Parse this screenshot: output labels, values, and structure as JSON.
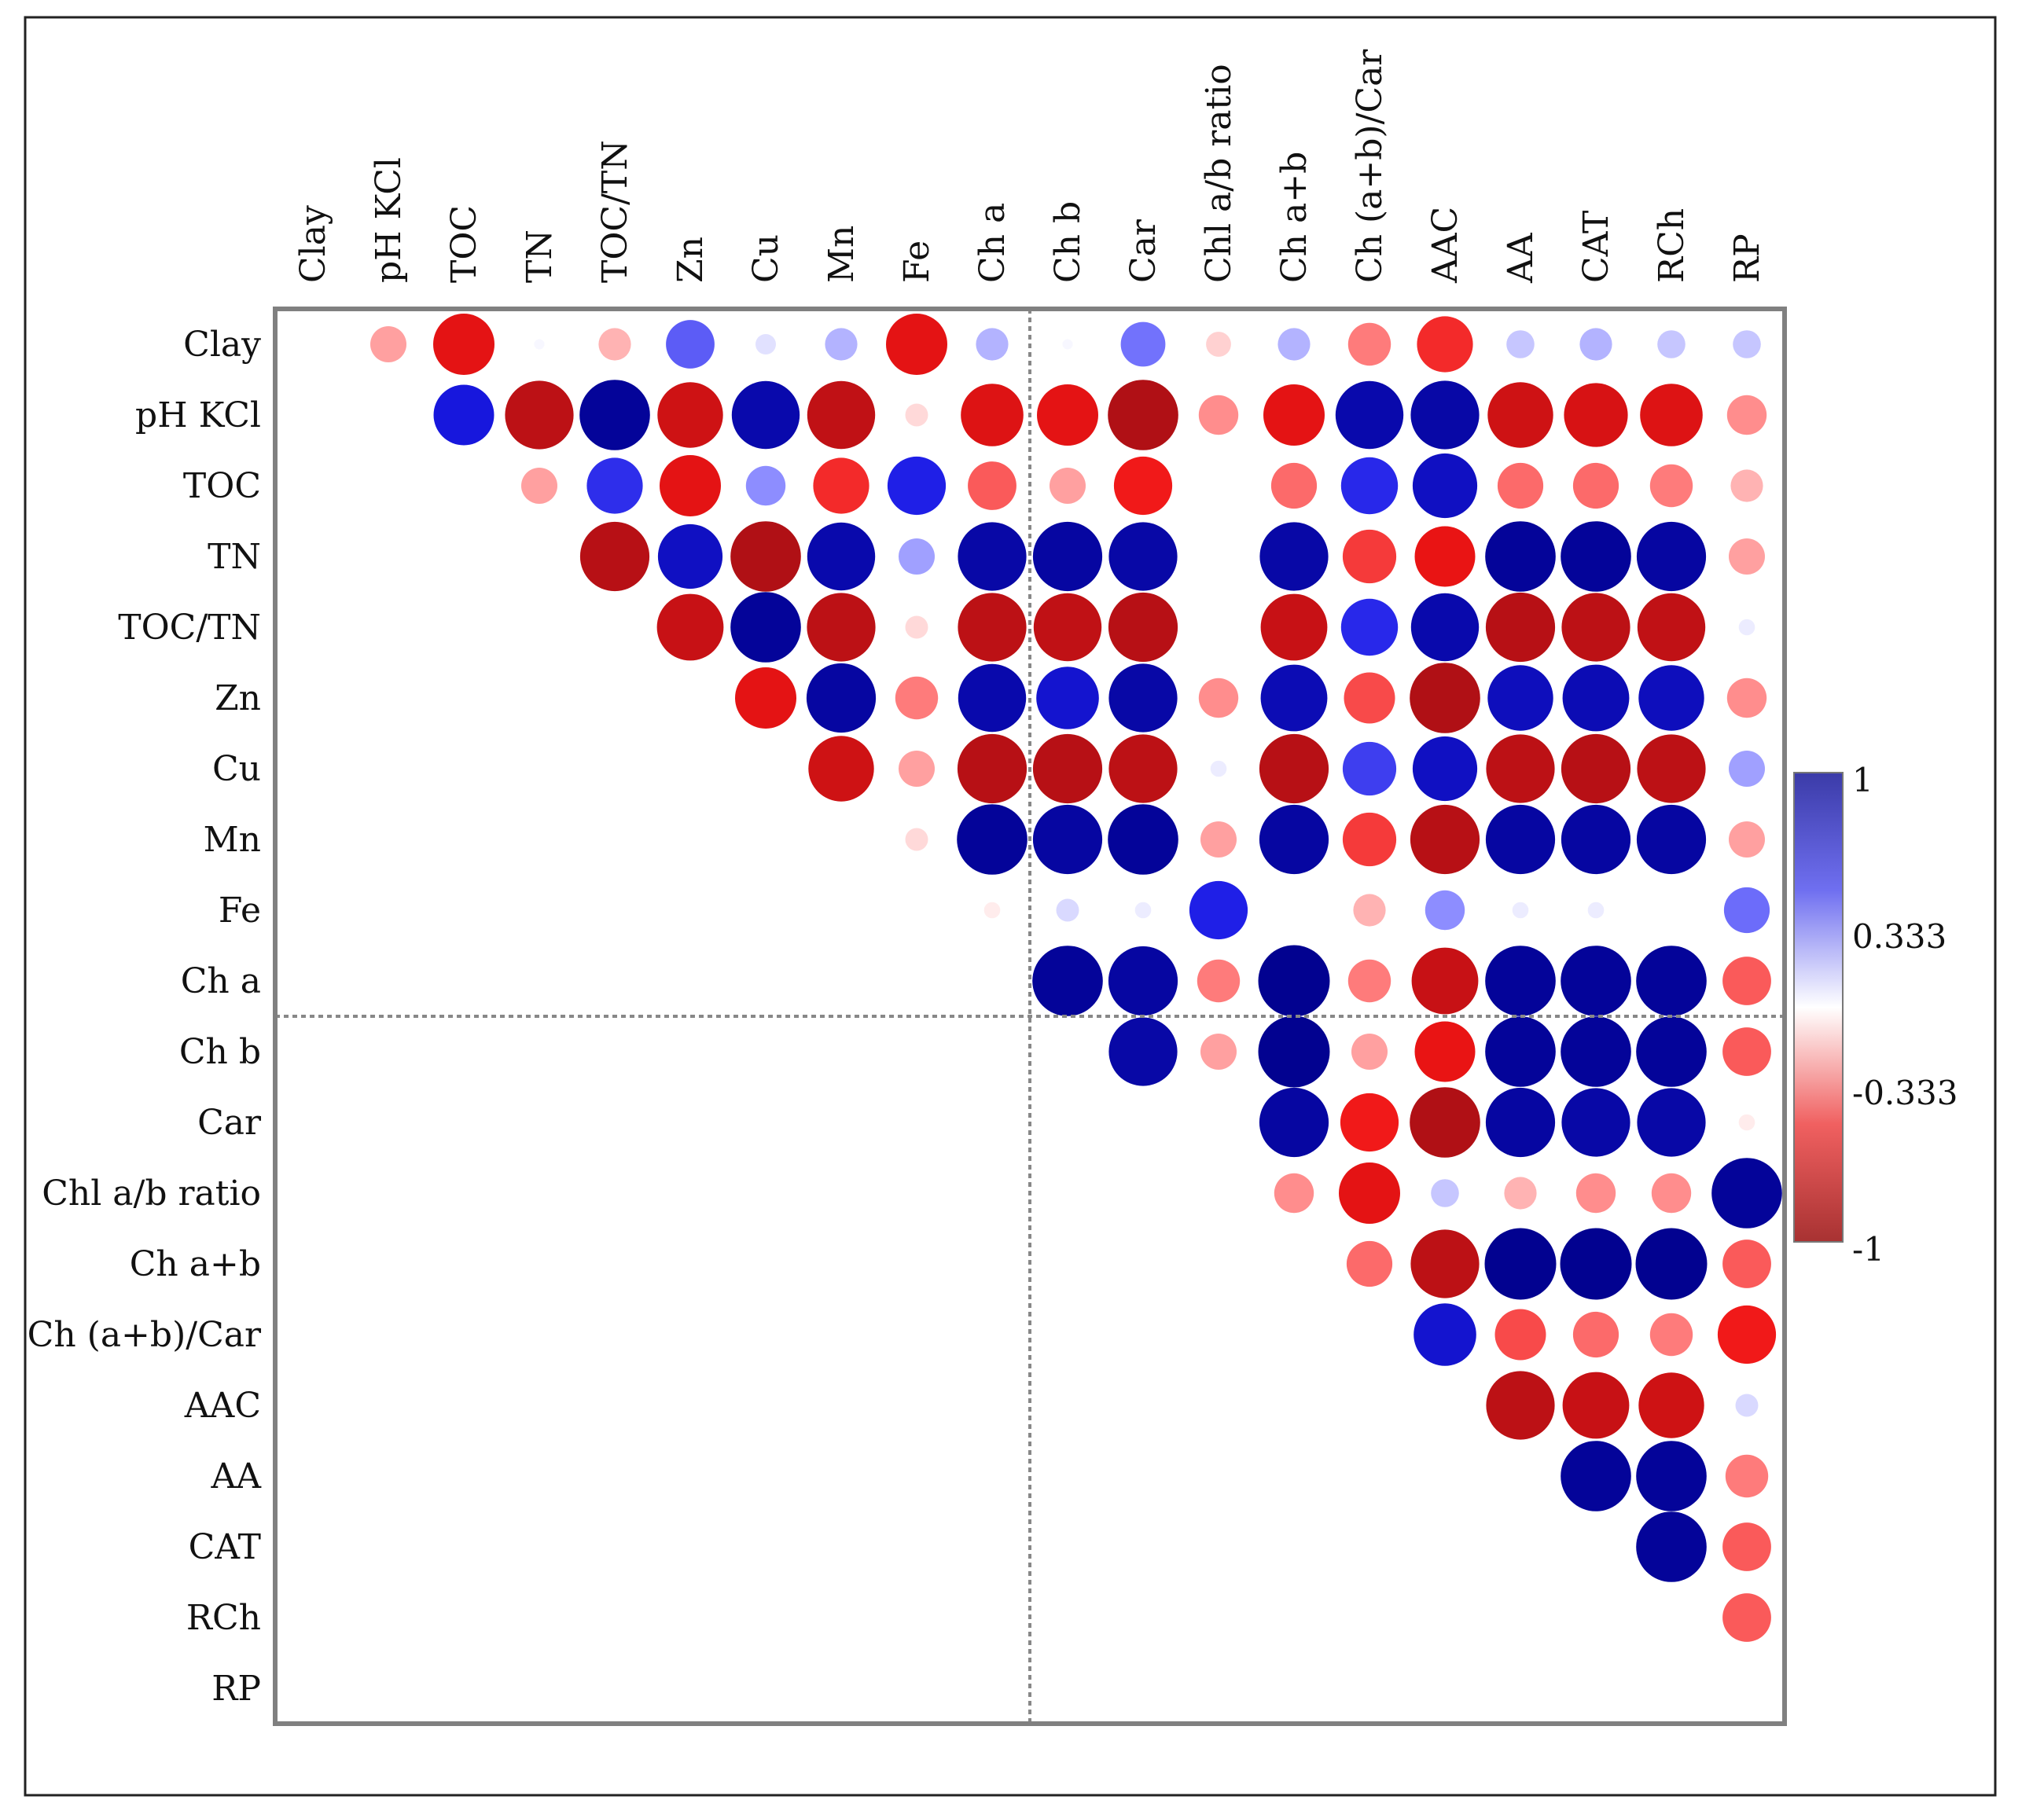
{
  "chart_data": {
    "type": "heatmap",
    "style": "correlogram-upper-triangle-circles",
    "title": "",
    "variables": [
      "Clay",
      "pH KCl",
      "TOC",
      "TN",
      "TOC/TN",
      "Zn",
      "Cu",
      "Mn",
      "Fe",
      "Ch a",
      "Ch b",
      "Car",
      "Chl a/b ratio",
      "Ch a+b",
      "Ch (a+b)/Car",
      "AAC",
      "AA",
      "CAT",
      "RCh",
      "RP"
    ],
    "value_range": [
      -1,
      1
    ],
    "colorbar_ticks": [
      "1",
      "0.333",
      "-0.333",
      "-1"
    ],
    "colorbar_tick_values": [
      1,
      0.333,
      -0.333,
      -1
    ],
    "colors": {
      "positive": "#00008b",
      "mid": "#ffffff",
      "negative": "#a50f15",
      "frame": "#808080",
      "separator": "#808080"
    },
    "separator_after_index": 9,
    "matrix": [
      [
        null,
        -0.25,
        -0.72,
        0.02,
        -0.2,
        0.45,
        0.08,
        0.2,
        -0.72,
        0.2,
        0.02,
        0.38,
        -0.12,
        0.2,
        -0.35,
        -0.6,
        0.15,
        0.2,
        0.15,
        0.15
      ],
      [
        null,
        null,
        0.7,
        -0.9,
        0.95,
        -0.82,
        0.88,
        -0.88,
        -0.1,
        -0.75,
        -0.72,
        -0.95,
        -0.3,
        -0.72,
        0.88,
        0.9,
        -0.82,
        -0.78,
        -0.75,
        -0.3
      ],
      [
        null,
        null,
        null,
        -0.25,
        0.6,
        -0.72,
        0.3,
        -0.6,
        0.65,
        -0.45,
        -0.25,
        -0.65,
        0.0,
        -0.4,
        0.62,
        0.8,
        -0.4,
        -0.4,
        -0.35,
        -0.2
      ],
      [
        null,
        null,
        null,
        null,
        -0.92,
        0.8,
        -0.95,
        0.88,
        0.25,
        0.9,
        0.92,
        0.9,
        0.0,
        0.9,
        -0.55,
        -0.7,
        0.95,
        0.95,
        0.92,
        -0.25
      ],
      [
        null,
        null,
        null,
        null,
        null,
        -0.85,
        0.95,
        -0.9,
        -0.1,
        -0.9,
        -0.88,
        -0.92,
        0.0,
        -0.85,
        0.62,
        0.88,
        -0.92,
        -0.9,
        -0.88,
        0.05
      ],
      [
        null,
        null,
        null,
        null,
        null,
        null,
        -0.72,
        0.92,
        -0.35,
        0.88,
        0.75,
        0.9,
        -0.3,
        0.85,
        -0.5,
        -0.95,
        0.82,
        0.85,
        0.82,
        -0.3
      ],
      [
        null,
        null,
        null,
        null,
        null,
        null,
        null,
        -0.82,
        -0.25,
        -0.92,
        -0.92,
        -0.9,
        0.05,
        -0.92,
        0.55,
        0.8,
        -0.9,
        -0.92,
        -0.9,
        0.25
      ],
      [
        null,
        null,
        null,
        null,
        null,
        null,
        null,
        null,
        -0.1,
        0.95,
        0.92,
        0.95,
        -0.25,
        0.92,
        -0.55,
        -0.92,
        0.92,
        0.92,
        0.92,
        -0.25
      ],
      [
        null,
        null,
        null,
        null,
        null,
        null,
        null,
        null,
        null,
        -0.05,
        0.1,
        0.05,
        0.65,
        0.0,
        -0.2,
        0.3,
        0.05,
        0.05,
        0.0,
        0.4
      ],
      [
        null,
        null,
        null,
        null,
        null,
        null,
        null,
        null,
        null,
        null,
        0.95,
        0.92,
        -0.35,
        0.98,
        -0.35,
        -0.85,
        0.95,
        0.95,
        0.95,
        -0.45
      ],
      [
        null,
        null,
        null,
        null,
        null,
        null,
        null,
        null,
        null,
        null,
        null,
        0.9,
        -0.25,
        0.98,
        -0.25,
        -0.7,
        0.95,
        0.95,
        0.95,
        -0.45
      ],
      [
        null,
        null,
        null,
        null,
        null,
        null,
        null,
        null,
        null,
        null,
        null,
        null,
        0.0,
        0.92,
        -0.65,
        -0.95,
        0.92,
        0.9,
        0.9,
        -0.05
      ],
      [
        null,
        null,
        null,
        null,
        null,
        null,
        null,
        null,
        null,
        null,
        null,
        null,
        null,
        -0.3,
        -0.72,
        0.15,
        -0.2,
        -0.3,
        -0.3,
        0.95
      ],
      [
        null,
        null,
        null,
        null,
        null,
        null,
        null,
        null,
        null,
        null,
        null,
        null,
        null,
        null,
        -0.4,
        -0.9,
        0.98,
        0.98,
        0.98,
        -0.45
      ],
      [
        null,
        null,
        null,
        null,
        null,
        null,
        null,
        null,
        null,
        null,
        null,
        null,
        null,
        null,
        null,
        0.75,
        -0.5,
        -0.4,
        -0.35,
        -0.65
      ],
      [
        null,
        null,
        null,
        null,
        null,
        null,
        null,
        null,
        null,
        null,
        null,
        null,
        null,
        null,
        null,
        null,
        -0.9,
        -0.85,
        -0.82,
        0.1
      ],
      [
        null,
        null,
        null,
        null,
        null,
        null,
        null,
        null,
        null,
        null,
        null,
        null,
        null,
        null,
        null,
        null,
        null,
        0.95,
        0.95,
        -0.35
      ],
      [
        null,
        null,
        null,
        null,
        null,
        null,
        null,
        null,
        null,
        null,
        null,
        null,
        null,
        null,
        null,
        null,
        null,
        null,
        0.95,
        -0.45
      ],
      [
        null,
        null,
        null,
        null,
        null,
        null,
        null,
        null,
        null,
        null,
        null,
        null,
        null,
        null,
        null,
        null,
        null,
        null,
        null,
        -0.45
      ],
      [
        null,
        null,
        null,
        null,
        null,
        null,
        null,
        null,
        null,
        null,
        null,
        null,
        null,
        null,
        null,
        null,
        null,
        null,
        null,
        null
      ]
    ]
  }
}
